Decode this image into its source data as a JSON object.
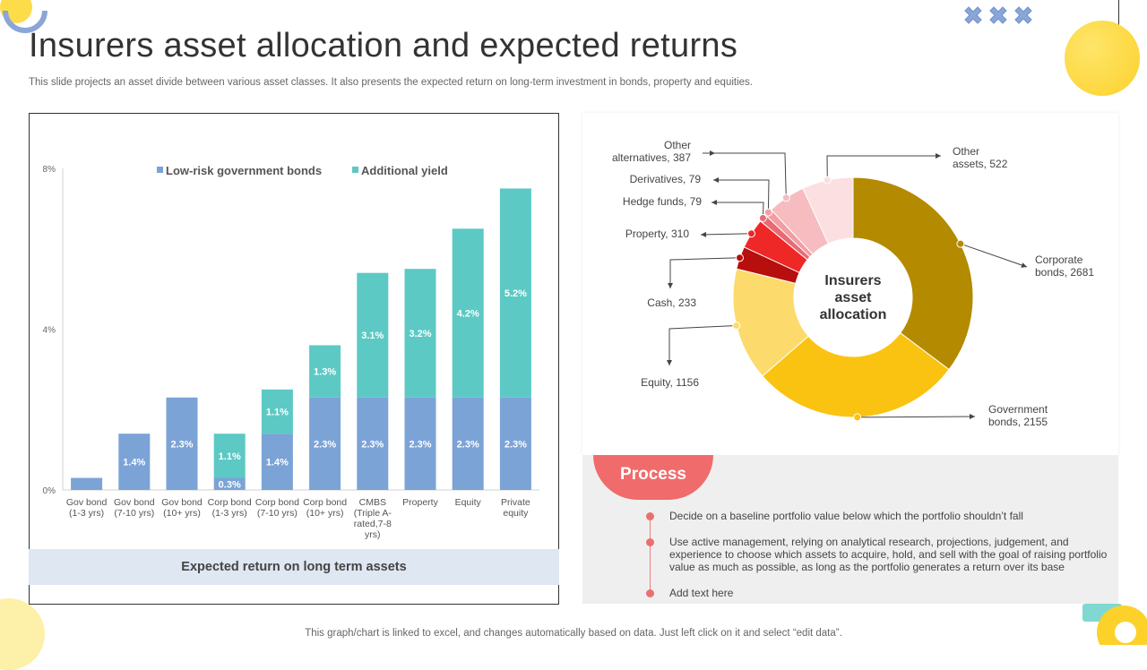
{
  "title": "Insurers asset allocation and expected returns",
  "subtitle": "This slide projects an asset divide between various asset classes. It also presents the expected return on long-term investment in bonds, property and equities.",
  "footer": "This graph/chart is linked to excel,  and changes automatically based on data. Just left click on it and select “edit data”.",
  "colors": {
    "low_risk": "#7ba3d6",
    "additional_yield": "#5cc9c4",
    "process_accent": "#f06b6b",
    "deco_yellow": "#fddc4a"
  },
  "chart_data": [
    {
      "type": "bar",
      "stacked": true,
      "categories": [
        [
          "Gov bond",
          "(1-3 yrs)"
        ],
        [
          "Gov bond",
          "(7-10 yrs)"
        ],
        [
          "Gov bond",
          "(10+ yrs)"
        ],
        [
          "Corp bond",
          "(1-3 yrs)"
        ],
        [
          "Corp bond",
          "(7-10 yrs)"
        ],
        [
          "Corp bond",
          "(10+ yrs)"
        ],
        [
          "CMBS",
          "(Triple A-",
          "rated,7-8",
          "yrs)"
        ],
        [
          "Property"
        ],
        [
          "Equity"
        ],
        [
          "Private",
          "equity"
        ]
      ],
      "series": [
        {
          "name": "Low-risk government bonds",
          "values": [
            0.3,
            1.4,
            2.3,
            0.3,
            1.4,
            2.3,
            2.3,
            2.3,
            2.3,
            2.3
          ],
          "labels": [
            "",
            "1.4%",
            "2.3%",
            "0.3%",
            "1.4%",
            "2.3%",
            "2.3%",
            "2.3%",
            "2.3%",
            "2.3%"
          ]
        },
        {
          "name": "Additional yield",
          "values": [
            0,
            0,
            0,
            1.1,
            1.1,
            1.3,
            3.1,
            3.2,
            4.2,
            5.2
          ],
          "labels": [
            "",
            "",
            "",
            "1.1%",
            "1.1%",
            "1.3%",
            "3.1%",
            "3.2%",
            "4.2%",
            "5.2%"
          ]
        }
      ],
      "yticks": [
        "0%",
        "4%",
        "8%"
      ],
      "ylim": [
        0,
        8
      ],
      "legend_position": "top",
      "caption": "Expected return on long term assets"
    },
    {
      "type": "pie",
      "donut": true,
      "center_label": [
        "Insurers",
        "asset",
        "allocation"
      ],
      "slices": [
        {
          "label": [
            "Corporate",
            "bonds, 2681"
          ],
          "value": 2681,
          "color": "#b38a00"
        },
        {
          "label": [
            "Government",
            "bonds, 2155"
          ],
          "value": 2155,
          "color": "#fbc311"
        },
        {
          "label": [
            "Equity, 1156"
          ],
          "value": 1156,
          "color": "#fcdb6c"
        },
        {
          "label": [
            "Cash, 233"
          ],
          "value": 233,
          "color": "#b70e0e"
        },
        {
          "label": [
            "Property, 310"
          ],
          "value": 310,
          "color": "#ee2727"
        },
        {
          "label": [
            "Hedge funds, 79"
          ],
          "value": 79,
          "color": "#e86a72"
        },
        {
          "label": [
            "Derivatives, 79"
          ],
          "value": 79,
          "color": "#f19da3"
        },
        {
          "label": [
            "Other",
            "alternatives, 387"
          ],
          "value": 387,
          "color": "#f6bcc0"
        },
        {
          "label": [
            "Other",
            "assets, 522"
          ],
          "value": 522,
          "color": "#fcdfe1"
        }
      ]
    }
  ],
  "process": {
    "badge": "Process",
    "steps": [
      "Decide on a baseline portfolio value below which the portfolio shouldn’t fall",
      "Use active management, relying on analytical research, projections, judgement, and experience to choose which assets to acquire, hold, and sell with the goal of raising portfolio value as much as possible, as long as the portfolio generates a return over its base",
      "Add text here"
    ]
  }
}
